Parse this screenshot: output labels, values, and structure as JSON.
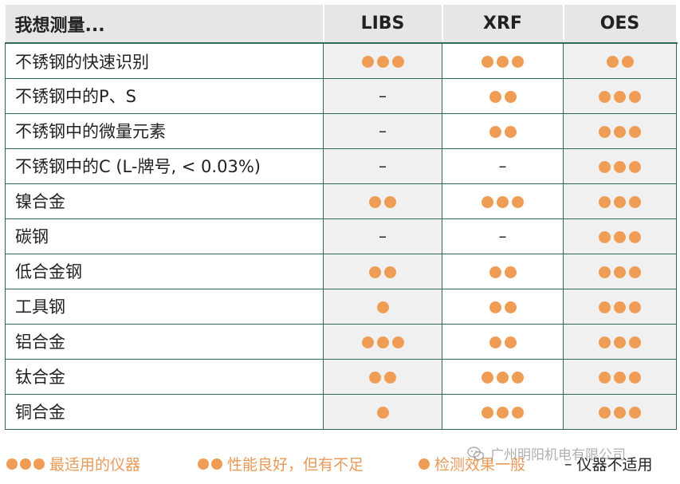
{
  "colors": {
    "dot": "#ef9d55",
    "border": "#2f6a55",
    "header_bg": "#e6e6e6",
    "alt_bg": "#f0f0f0"
  },
  "header": {
    "measure": "我想测量...",
    "libs": "LIBS",
    "xrf": "XRF",
    "oes": "OES"
  },
  "rows": [
    {
      "label": "不锈钢的快速识别",
      "libs": 3,
      "xrf": 3,
      "oes": 2
    },
    {
      "label": "不锈钢中的P、S",
      "libs": 0,
      "xrf": 2,
      "oes": 3
    },
    {
      "label": "不锈钢中的微量元素",
      "libs": 0,
      "xrf": 2,
      "oes": 3
    },
    {
      "label": "不锈钢中的C (L-牌号, < 0.03%)",
      "libs": 0,
      "xrf": 0,
      "oes": 3
    },
    {
      "label": "镍合金",
      "libs": 2,
      "xrf": 3,
      "oes": 3
    },
    {
      "label": "碳钢",
      "libs": 0,
      "xrf": 0,
      "oes": 3
    },
    {
      "label": "低合金钢",
      "libs": 2,
      "xrf": 2,
      "oes": 3
    },
    {
      "label": "工具钢",
      "libs": 1,
      "xrf": 2,
      "oes": 3
    },
    {
      "label": "铝合金",
      "libs": 3,
      "xrf": 2,
      "oes": 3
    },
    {
      "label": "钛合金",
      "libs": 2,
      "xrf": 3,
      "oes": 3
    },
    {
      "label": "铜合金",
      "libs": 1,
      "xrf": 3,
      "oes": 3
    }
  ],
  "dash_symbol": "–",
  "legend": {
    "best": "最适用的仪器",
    "good": "性能良好，但有不足",
    "fair": "检测效果一般",
    "none": "仪器不适用"
  },
  "watermark": {
    "text": "广州明阳机电有限公司",
    "icon": "wechat-icon"
  }
}
